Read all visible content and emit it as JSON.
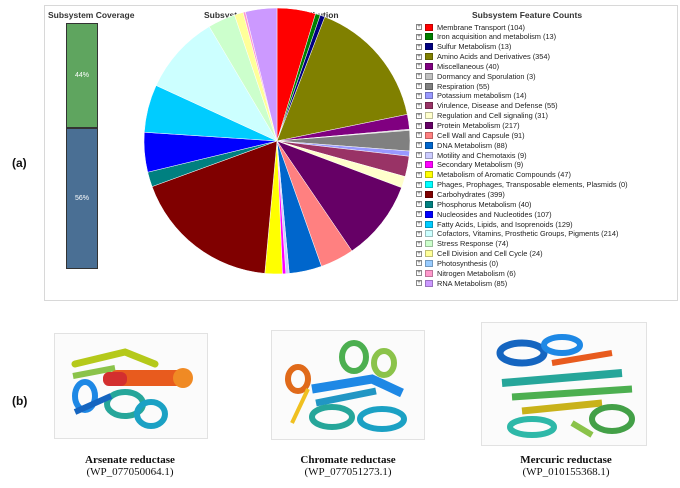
{
  "panel_labels": {
    "a": "(a)",
    "b": "(b)"
  },
  "coverage": {
    "title": "Subsystem Coverage",
    "segments": [
      {
        "label": "44%",
        "value": 44,
        "color": "#5fa55f"
      },
      {
        "label": "56%",
        "value": 56,
        "color": "#4a6f94"
      }
    ]
  },
  "pie_title": "Subsystem Category Distribution",
  "legend_title": "Subsystem Feature Counts",
  "chart_data": {
    "type": "pie",
    "title": "Subsystem Category Distribution",
    "slices": [
      {
        "label": "Membrane Transport (104)",
        "value": 104,
        "color": "#ff0000"
      },
      {
        "label": "Iron acquisition and metabolism (13)",
        "value": 13,
        "color": "#008000"
      },
      {
        "label": "Sulfur Metabolism (13)",
        "value": 13,
        "color": "#000080"
      },
      {
        "label": "Amino Acids and Derivatives (354)",
        "value": 354,
        "color": "#808000"
      },
      {
        "label": "Miscellaneous (40)",
        "value": 40,
        "color": "#800080"
      },
      {
        "label": "Dormancy and Sporulation (3)",
        "value": 3,
        "color": "#c0c0c0"
      },
      {
        "label": "Respiration (55)",
        "value": 55,
        "color": "#808080"
      },
      {
        "label": "Potassium metabolism (14)",
        "value": 14,
        "color": "#9999ff"
      },
      {
        "label": "Virulence, Disease and Defense (55)",
        "value": 55,
        "color": "#993366"
      },
      {
        "label": "Regulation and Cell signaling (31)",
        "value": 31,
        "color": "#ffffcc"
      },
      {
        "label": "Protein Metabolism (217)",
        "value": 217,
        "color": "#660066"
      },
      {
        "label": "Cell Wall and Capsule (91)",
        "value": 91,
        "color": "#ff8080"
      },
      {
        "label": "DNA Metabolism (88)",
        "value": 88,
        "color": "#0066cc"
      },
      {
        "label": "Motility and Chemotaxis (9)",
        "value": 9,
        "color": "#ccccff"
      },
      {
        "label": "Secondary Metabolism (9)",
        "value": 9,
        "color": "#ff00ff"
      },
      {
        "label": "Metabolism of Aromatic Compounds (47)",
        "value": 47,
        "color": "#ffff00"
      },
      {
        "label": "Phages, Prophages, Transposable elements, Plasmids (0)",
        "value": 0,
        "color": "#00ffff"
      },
      {
        "label": "Carbohydrates (399)",
        "value": 399,
        "color": "#800000"
      },
      {
        "label": "Phosphorus Metabolism (40)",
        "value": 40,
        "color": "#008080"
      },
      {
        "label": "Nucleosides and Nucleotides (107)",
        "value": 107,
        "color": "#0000ff"
      },
      {
        "label": "Fatty Acids, Lipids, and Isoprenoids (129)",
        "value": 129,
        "color": "#00ccff"
      },
      {
        "label": "Cofactors, Vitamins, Prosthetic Groups, Pigments (214)",
        "value": 214,
        "color": "#ccffff"
      },
      {
        "label": "Stress Response (74)",
        "value": 74,
        "color": "#ccffcc"
      },
      {
        "label": "Cell Division and Cell Cycle (24)",
        "value": 24,
        "color": "#ffff99"
      },
      {
        "label": "Photosynthesis (0)",
        "value": 0,
        "color": "#99ccff"
      },
      {
        "label": "Nitrogen Metabolism (6)",
        "value": 6,
        "color": "#ff99cc"
      },
      {
        "label": "RNA Metabolism (85)",
        "value": 85,
        "color": "#cc99ff"
      }
    ]
  },
  "proteins": [
    {
      "name": "Arsenate reductase",
      "id": "(WP_077050064.1)"
    },
    {
      "name": "Chromate reductase",
      "id": "(WP_077051273.1)"
    },
    {
      "name": "Mercuric reductase",
      "id": "(WP_010155368.1)"
    }
  ]
}
